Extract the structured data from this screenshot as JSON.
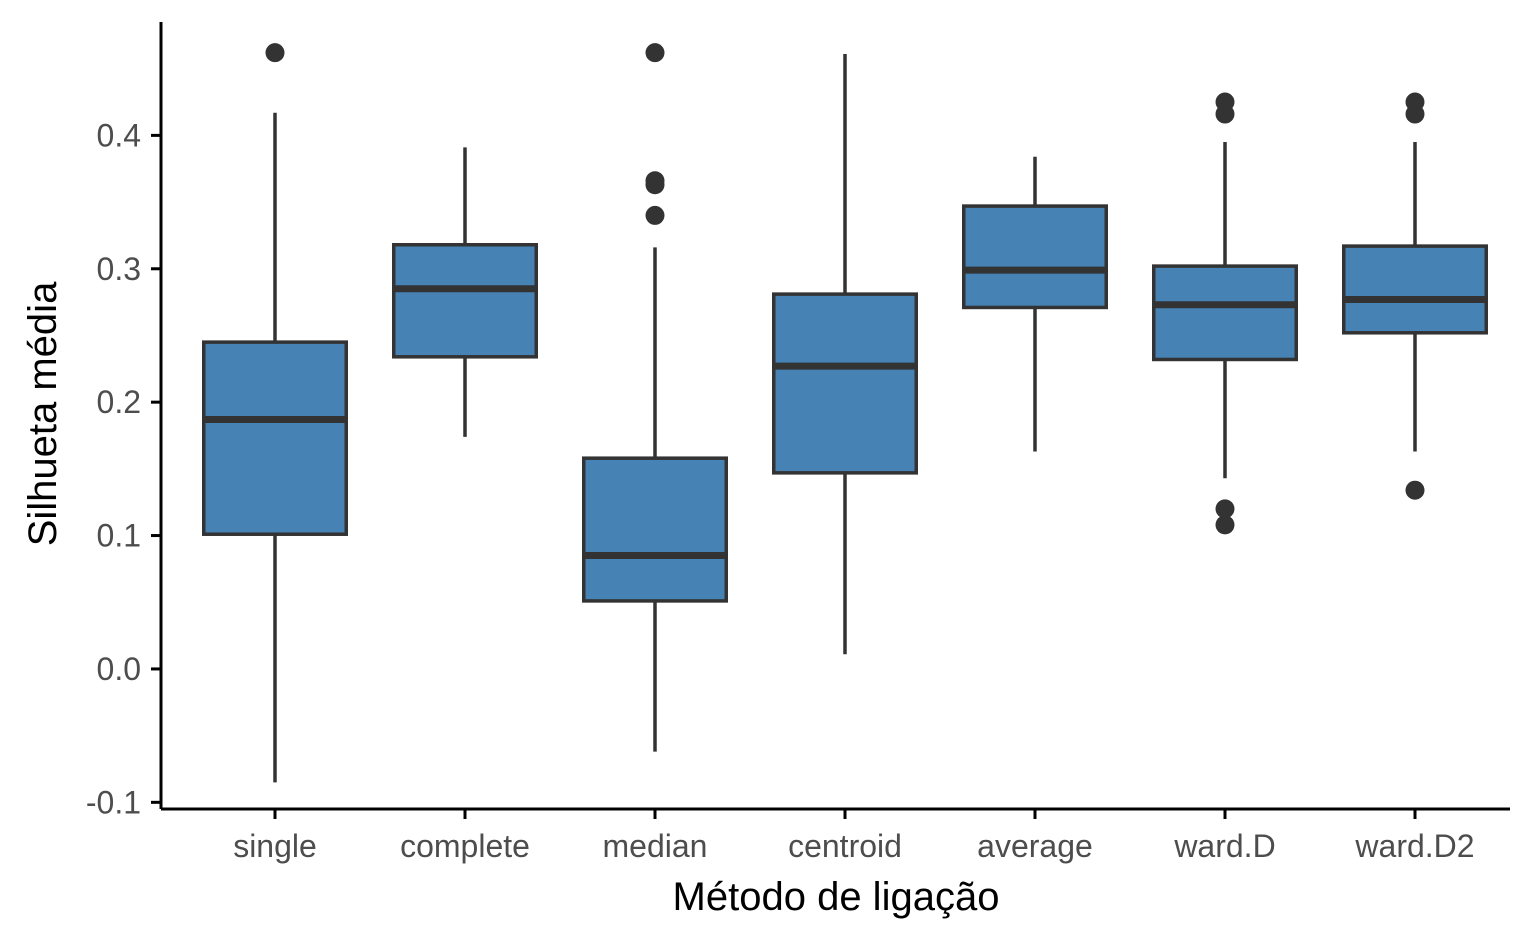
{
  "chart_data": {
    "type": "boxplot",
    "title": "",
    "xlabel": "Método de ligação",
    "ylabel": "Silhueta média",
    "ylim": [
      -0.105,
      0.485
    ],
    "yticks": [
      -0.1,
      0.0,
      0.1,
      0.2,
      0.3,
      0.4
    ],
    "ytick_labels": [
      "-0.1",
      "0.0",
      "0.1",
      "0.2",
      "0.3",
      "0.4"
    ],
    "grid": false,
    "legend": "none",
    "colors": {
      "box_fill": "#4682B4",
      "line": "#333333",
      "axis": "#000000"
    },
    "categories": [
      "single",
      "complete",
      "median",
      "centroid",
      "average",
      "ward.D",
      "ward.D2"
    ],
    "boxes": [
      {
        "category": "single",
        "whisker_low": -0.085,
        "q1": 0.101,
        "median": 0.187,
        "q3": 0.245,
        "whisker_high": 0.417,
        "outliers": [
          0.462
        ]
      },
      {
        "category": "complete",
        "whisker_low": 0.174,
        "q1": 0.234,
        "median": 0.285,
        "q3": 0.318,
        "whisker_high": 0.391,
        "outliers": []
      },
      {
        "category": "median",
        "whisker_low": -0.062,
        "q1": 0.051,
        "median": 0.085,
        "q3": 0.158,
        "whisker_high": 0.316,
        "outliers": [
          0.34,
          0.363,
          0.366,
          0.462
        ]
      },
      {
        "category": "centroid",
        "whisker_low": 0.011,
        "q1": 0.147,
        "median": 0.227,
        "q3": 0.281,
        "whisker_high": 0.461,
        "outliers": []
      },
      {
        "category": "average",
        "whisker_low": 0.163,
        "q1": 0.271,
        "median": 0.299,
        "q3": 0.347,
        "whisker_high": 0.384,
        "outliers": []
      },
      {
        "category": "ward.D",
        "whisker_low": 0.143,
        "q1": 0.232,
        "median": 0.273,
        "q3": 0.302,
        "whisker_high": 0.395,
        "outliers": [
          0.108,
          0.12,
          0.416,
          0.425
        ]
      },
      {
        "category": "ward.D2",
        "whisker_low": 0.163,
        "q1": 0.252,
        "median": 0.277,
        "q3": 0.317,
        "whisker_high": 0.395,
        "outliers": [
          0.134,
          0.416,
          0.425
        ]
      }
    ]
  }
}
